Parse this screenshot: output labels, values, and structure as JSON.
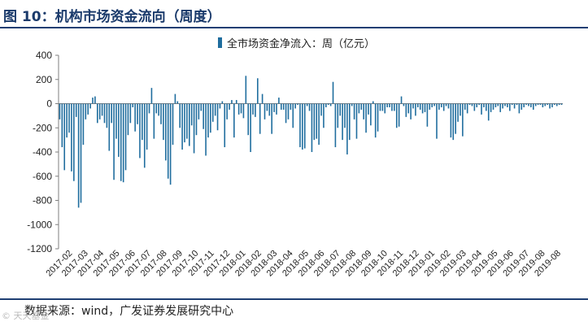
{
  "figure": {
    "title": "图 10：机构市场资金流向（周度）",
    "source": "数据来源：wind，广发证券发展研究中心",
    "watermark": "© 天天基金"
  },
  "colors": {
    "bar": "#1f6d9e",
    "axis": "#7f7f7f",
    "text": "#222222",
    "rule": "#1f3f73"
  },
  "chart_data": {
    "type": "bar",
    "title": "",
    "legend": {
      "label": "全市场资金净流入：周（亿元）",
      "position": "top-center"
    },
    "xlabel": "",
    "ylabel": "",
    "ylim": [
      -1200,
      400
    ],
    "yticks": [
      -1200,
      -1000,
      -800,
      -600,
      -400,
      -200,
      0,
      200,
      400
    ],
    "xtick_labels": [
      "2017-02",
      "2017-03",
      "2017-04",
      "2017-05",
      "2017-06",
      "2017-07",
      "2017-08",
      "2017-09",
      "2017-10",
      "2017-11",
      "2017-12",
      "2018-01",
      "2018-02",
      "2018-03",
      "2018-04",
      "2018-05",
      "2018-06",
      "2018-07",
      "2018-08",
      "2018-09",
      "2018-10",
      "2018-11",
      "2018-12",
      "2019-01",
      "2019-02",
      "2019-03",
      "2019-04",
      "2019-05",
      "2019-06",
      "2019-07",
      "2019-08",
      "2019-08"
    ],
    "series": [
      {
        "name": "全市场资金净流入：周（亿元）",
        "values": [
          -130,
          -360,
          -550,
          -280,
          -240,
          -560,
          -640,
          -110,
          -860,
          -820,
          -340,
          -130,
          -90,
          -40,
          50,
          60,
          -160,
          -130,
          -100,
          -160,
          -200,
          -390,
          -160,
          -630,
          -290,
          -440,
          -640,
          -650,
          -550,
          -260,
          -160,
          -30,
          -230,
          -170,
          -450,
          -300,
          -530,
          -380,
          -80,
          130,
          -290,
          -80,
          -100,
          -170,
          -300,
          -470,
          -620,
          -670,
          -340,
          80,
          20,
          -200,
          -380,
          -320,
          -290,
          -350,
          -180,
          -410,
          -260,
          -130,
          -60,
          -210,
          -430,
          -280,
          -240,
          -150,
          -100,
          -220,
          -40,
          20,
          -360,
          -130,
          -50,
          30,
          -280,
          30,
          -90,
          -80,
          -120,
          230,
          -260,
          -400,
          -90,
          -110,
          210,
          -250,
          80,
          -130,
          -60,
          -100,
          -250,
          -70,
          -90,
          50,
          -50,
          -50,
          -160,
          -130,
          -50,
          -200,
          -40,
          -10,
          -360,
          -380,
          -370,
          -20,
          -60,
          -400,
          -300,
          -290,
          -340,
          -100,
          -200,
          -30,
          -10,
          -20,
          180,
          -360,
          -200,
          -100,
          -300,
          -200,
          -420,
          -300,
          -20,
          -130,
          -290,
          -80,
          -50,
          -130,
          -240,
          -90,
          -180,
          20,
          -280,
          -230,
          -60,
          -60,
          -80,
          -30,
          -30,
          -60,
          -60,
          -200,
          -190,
          60,
          -20,
          -110,
          -80,
          -130,
          -40,
          -100,
          -30,
          -50,
          -80,
          -70,
          -190,
          -50,
          -30,
          -20,
          -290,
          -50,
          -30,
          -60,
          -20,
          -40,
          -280,
          -300,
          -250,
          -150,
          -100,
          -270,
          -50,
          -80,
          -10,
          -20,
          -60,
          -30,
          -10,
          -90,
          -30,
          -60,
          -140,
          -70,
          -50,
          -30,
          -20,
          -70,
          -40,
          -20,
          -30,
          -60,
          -10,
          -40,
          -10,
          -80,
          -50,
          -30,
          -10,
          -20,
          -30,
          -50,
          -20,
          -10,
          -10,
          -30,
          -20,
          -10,
          -40,
          -30,
          -10,
          -20,
          -10,
          -10
        ]
      }
    ]
  }
}
